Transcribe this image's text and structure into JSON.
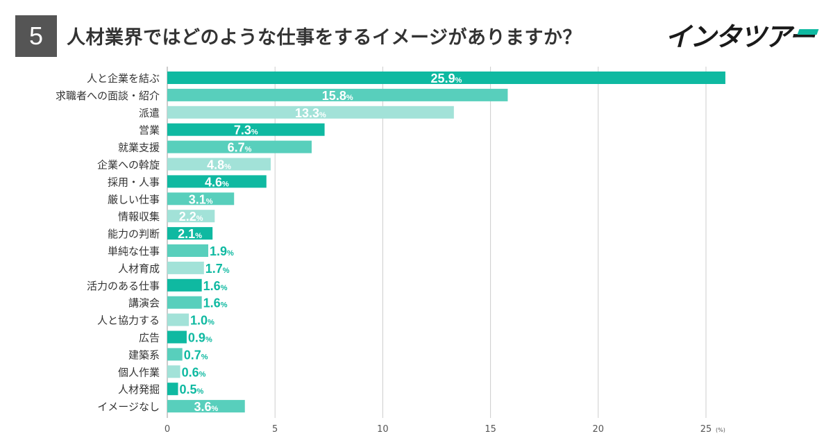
{
  "header": {
    "question_number": "5",
    "title": "人材業界ではどのような仕事をするイメージがありますか？",
    "logo_text": "インタツアー"
  },
  "colors": {
    "dark": "#0fb9a1",
    "mid": "#58cfbc",
    "light": "#a2e2d8",
    "grid": "#cccccc",
    "axis_text": "#555555",
    "label_text": "#333333",
    "header_box": "#555555"
  },
  "chart_data": {
    "type": "bar",
    "orientation": "horizontal",
    "categories": [
      "人と企業を結ぶ",
      "求職者への面談・紹介",
      "派遣",
      "営業",
      "就業支援",
      "企業への斡旋",
      "採用・人事",
      "厳しい仕事",
      "情報収集",
      "能力の判断",
      "単純な仕事",
      "人材育成",
      "活力のある仕事",
      "講演会",
      "人と協力する",
      "広告",
      "建築系",
      "個人作業",
      "人材発掘",
      "イメージなし"
    ],
    "values": [
      25.9,
      15.8,
      13.3,
      7.3,
      6.7,
      4.8,
      4.6,
      3.1,
      2.2,
      2.1,
      1.9,
      1.7,
      1.6,
      1.6,
      1.0,
      0.9,
      0.7,
      0.6,
      0.5,
      3.6
    ],
    "value_labels": [
      "25.9",
      "15.8",
      "13.3",
      "7.3",
      "6.7",
      "4.8",
      "4.6",
      "3.1",
      "2.2",
      "2.1",
      "1.9",
      "1.7",
      "1.6",
      "1.6",
      "1.0",
      "0.9",
      "0.7",
      "0.6",
      "0.5",
      "3.6"
    ],
    "value_suffix": "%",
    "xlim": [
      0,
      30
    ],
    "xticks": [
      "0",
      "5",
      "10",
      "15",
      "20",
      "25"
    ],
    "x_unit": "(%)",
    "grid": true
  }
}
